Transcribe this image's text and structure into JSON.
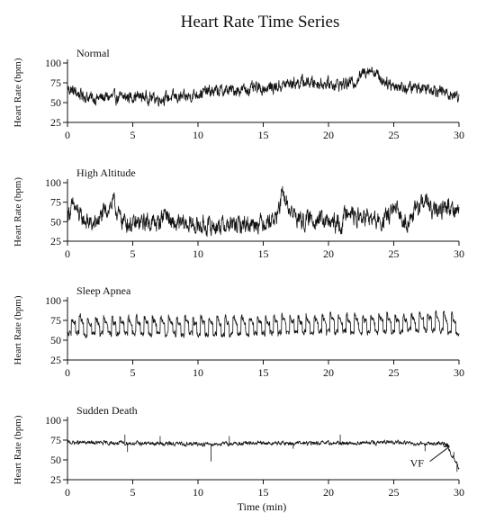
{
  "figure_title": "Heart Rate Time Series",
  "x_axis_label": "Time (min)",
  "chart_data": [
    {
      "type": "line",
      "title": "Normal",
      "ylabel": "Heart Rate (bpm)",
      "xlim": [
        0,
        30
      ],
      "ylim": [
        25,
        100
      ],
      "xticks": [
        0,
        5,
        10,
        15,
        20,
        25,
        30
      ],
      "yticks": [
        25,
        50,
        75,
        100
      ],
      "series": [
        {
          "x": [
            0,
            1,
            2,
            3,
            4,
            5,
            6,
            7,
            8,
            9,
            10,
            11,
            12,
            13,
            14,
            15,
            16,
            17,
            18,
            19,
            20,
            21,
            22,
            23,
            23.5,
            24,
            25,
            26,
            27,
            28,
            29,
            30
          ],
          "values": [
            68,
            60,
            55,
            57,
            56,
            58,
            57,
            55,
            57,
            56,
            62,
            64,
            65,
            66,
            67,
            68,
            70,
            74,
            76,
            75,
            74,
            73,
            76,
            93,
            90,
            80,
            72,
            68,
            70,
            68,
            62,
            58
          ],
          "noise": 6
        }
      ]
    },
    {
      "type": "line",
      "title": "High Altitude",
      "ylabel": "Heart Rate (bpm)",
      "xlim": [
        0,
        30
      ],
      "ylim": [
        25,
        100
      ],
      "xticks": [
        0,
        5,
        10,
        15,
        20,
        25,
        30
      ],
      "yticks": [
        25,
        50,
        75,
        100
      ],
      "series": [
        {
          "x": [
            0,
            0.5,
            1,
            2,
            3,
            3.5,
            4,
            5,
            6,
            7,
            7.5,
            8,
            9,
            10,
            11,
            12,
            13,
            14,
            15,
            16,
            16.5,
            17,
            18,
            19,
            20,
            21,
            21.5,
            22,
            23,
            24,
            25,
            26,
            27,
            27.5,
            28,
            29,
            30
          ],
          "values": [
            60,
            70,
            55,
            45,
            65,
            75,
            55,
            45,
            50,
            48,
            65,
            45,
            47,
            45,
            44,
            46,
            45,
            48,
            50,
            55,
            85,
            65,
            50,
            55,
            48,
            46,
            70,
            55,
            55,
            48,
            65,
            50,
            70,
            78,
            60,
            70,
            65
          ],
          "noise": 9
        }
      ]
    },
    {
      "type": "line",
      "title": "Sleep Apnea",
      "ylabel": "Heart Rate (bpm)",
      "xlim": [
        0,
        30
      ],
      "ylim": [
        25,
        100
      ],
      "xticks": [
        0,
        5,
        10,
        15,
        20,
        25,
        30
      ],
      "yticks": [
        25,
        50,
        75,
        100
      ],
      "series": [
        {
          "x": [
            0,
            5,
            10,
            15,
            20,
            25,
            28,
            30
          ],
          "values": [
            67,
            68,
            67,
            68,
            70,
            70,
            73,
            68
          ],
          "oscillation_period": 0.62,
          "oscillation_amplitude": 12,
          "noise": 3
        }
      ]
    },
    {
      "type": "line",
      "title": "Sudden Death",
      "ylabel": "Heart Rate (bpm)",
      "xlim": [
        0,
        30
      ],
      "ylim": [
        25,
        100
      ],
      "xticks": [
        0,
        5,
        10,
        15,
        20,
        25,
        30
      ],
      "yticks": [
        25,
        50,
        75,
        100
      ],
      "series": [
        {
          "x": [
            0,
            5,
            10,
            15,
            20,
            25,
            29,
            30
          ],
          "values": [
            72,
            71,
            70,
            71,
            71,
            72,
            70,
            40
          ],
          "spikes": [
            {
              "x": 4.4,
              "y": 82
            },
            {
              "x": 4.6,
              "y": 60
            },
            {
              "x": 7.1,
              "y": 80
            },
            {
              "x": 11.0,
              "y": 48
            },
            {
              "x": 12.4,
              "y": 80
            },
            {
              "x": 17.3,
              "y": 64
            },
            {
              "x": 20.9,
              "y": 82
            },
            {
              "x": 27.4,
              "y": 61
            },
            {
              "x": 29.6,
              "y": 60
            },
            {
              "x": 29.85,
              "y": 35
            }
          ],
          "noise": 2
        }
      ],
      "annotations": [
        {
          "text": "VF",
          "x": 29.7,
          "y": 55
        }
      ]
    }
  ]
}
